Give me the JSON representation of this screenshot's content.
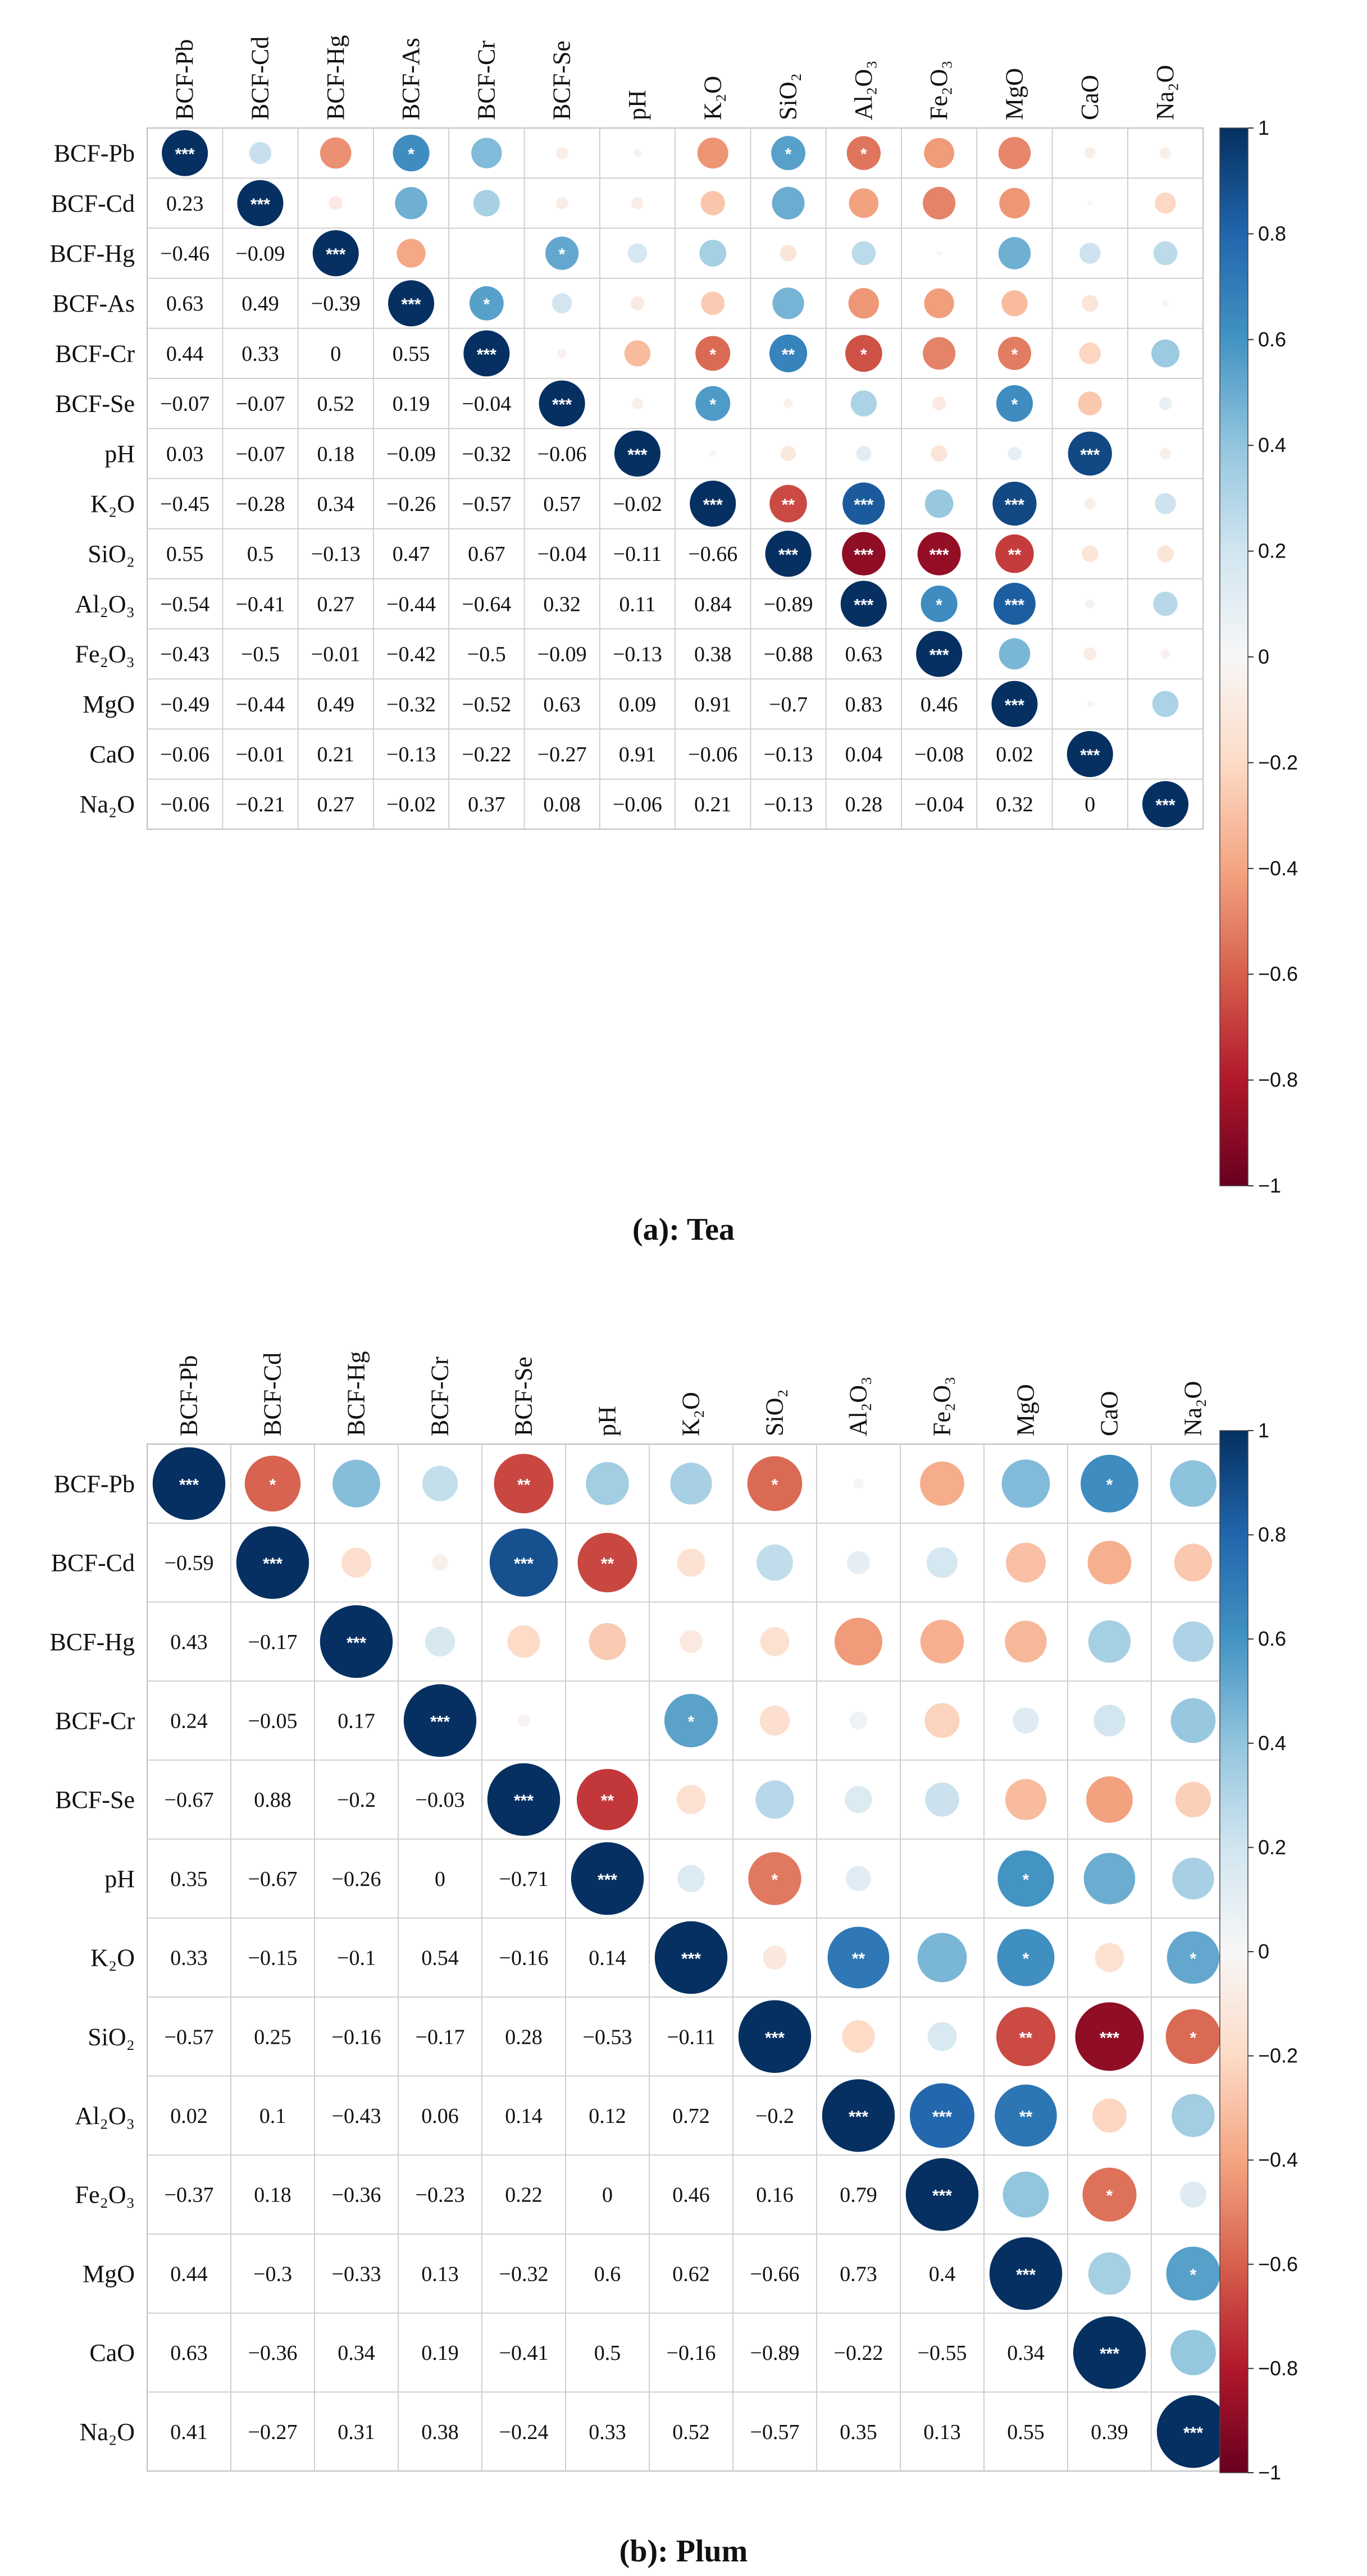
{
  "chart_data": [
    {
      "type": "heatmap",
      "subtype": "correlation-matrix (circles in upper triangle, values in lower triangle)",
      "title": "(a): Tea",
      "variables": [
        "BCF-Pb",
        "BCF-Cd",
        "BCF-Hg",
        "BCF-As",
        "BCF-Cr",
        "BCF-Se",
        "pH",
        "K₂O",
        "SiO₂",
        "Al₂O₃",
        "Fe₂O₃",
        "MgO",
        "CaO",
        "Na₂O"
      ],
      "lower_values": [
        [],
        [
          0.23
        ],
        [
          -0.46,
          -0.09
        ],
        [
          0.63,
          0.49,
          -0.39
        ],
        [
          0.44,
          0.33,
          0,
          0.55
        ],
        [
          -0.07,
          -0.07,
          0.52,
          0.19,
          -0.04
        ],
        [
          0.03,
          -0.07,
          0.18,
          -0.09,
          -0.32,
          -0.06
        ],
        [
          -0.45,
          -0.28,
          0.34,
          -0.26,
          -0.57,
          0.57,
          -0.02
        ],
        [
          0.55,
          0.5,
          -0.13,
          0.47,
          0.67,
          -0.04,
          -0.11,
          -0.66
        ],
        [
          -0.54,
          -0.41,
          0.27,
          -0.44,
          -0.64,
          0.32,
          0.11,
          0.84,
          -0.89
        ],
        [
          -0.43,
          -0.5,
          -0.01,
          -0.42,
          -0.5,
          -0.09,
          -0.13,
          0.38,
          -0.88,
          0.63
        ],
        [
          -0.49,
          -0.44,
          0.49,
          -0.32,
          -0.52,
          0.63,
          0.09,
          0.91,
          -0.7,
          0.83,
          0.46
        ],
        [
          -0.06,
          -0.01,
          0.21,
          -0.13,
          -0.22,
          -0.27,
          0.91,
          -0.06,
          -0.13,
          0.04,
          -0.08,
          0.02
        ],
        [
          -0.06,
          -0.21,
          0.27,
          -0.02,
          0.37,
          0.08,
          -0.06,
          0.21,
          -0.13,
          0.28,
          -0.04,
          0.32,
          0
        ]
      ],
      "significance": [
        {
          "row": 0,
          "col": 3,
          "mark": "*"
        },
        {
          "row": 0,
          "col": 8,
          "mark": "*"
        },
        {
          "row": 0,
          "col": 9,
          "mark": "*"
        },
        {
          "row": 2,
          "col": 5,
          "mark": "*"
        },
        {
          "row": 3,
          "col": 4,
          "mark": "*"
        },
        {
          "row": 4,
          "col": 7,
          "mark": "*"
        },
        {
          "row": 4,
          "col": 8,
          "mark": "**"
        },
        {
          "row": 4,
          "col": 9,
          "mark": "*"
        },
        {
          "row": 4,
          "col": 11,
          "mark": "*"
        },
        {
          "row": 5,
          "col": 7,
          "mark": "*"
        },
        {
          "row": 5,
          "col": 11,
          "mark": "*"
        },
        {
          "row": 6,
          "col": 12,
          "mark": "***"
        },
        {
          "row": 7,
          "col": 8,
          "mark": "**"
        },
        {
          "row": 7,
          "col": 9,
          "mark": "***"
        },
        {
          "row": 7,
          "col": 11,
          "mark": "***"
        },
        {
          "row": 8,
          "col": 9,
          "mark": "***"
        },
        {
          "row": 8,
          "col": 10,
          "mark": "***"
        },
        {
          "row": 8,
          "col": 11,
          "mark": "**"
        },
        {
          "row": 9,
          "col": 10,
          "mark": "*"
        },
        {
          "row": 9,
          "col": 11,
          "mark": "***"
        }
      ],
      "diagonal_mark": "***",
      "colorbar": {
        "range": [
          -1,
          1
        ],
        "ticks": [
          1,
          0.8,
          0.6,
          0.4,
          0.2,
          0,
          -0.2,
          -0.4,
          -0.6,
          -0.8,
          -1
        ],
        "tick_labels": [
          "1",
          "0.8",
          "0.6",
          "0.4",
          "0.2",
          "0",
          "−0.2",
          "−0.4",
          "−0.6",
          "−0.8",
          "−1"
        ],
        "negative_color": "#67001f",
        "neutral_color": "#ffffff",
        "positive_color": "#053061"
      }
    },
    {
      "type": "heatmap",
      "subtype": "correlation-matrix (circles in upper triangle, values in lower triangle)",
      "title": "(b): Plum",
      "variables": [
        "BCF-Pb",
        "BCF-Cd",
        "BCF-Hg",
        "BCF-Cr",
        "BCF-Se",
        "pH",
        "K₂O",
        "SiO₂",
        "Al₂O₃",
        "Fe₂O₃",
        "MgO",
        "CaO",
        "Na₂O"
      ],
      "lower_values": [
        [],
        [
          -0.59
        ],
        [
          0.43,
          -0.17
        ],
        [
          0.24,
          -0.05,
          0.17
        ],
        [
          -0.67,
          0.88,
          -0.2,
          -0.03
        ],
        [
          0.35,
          -0.67,
          -0.26,
          0,
          -0.71
        ],
        [
          0.33,
          -0.15,
          -0.1,
          0.54,
          -0.16,
          0.14
        ],
        [
          -0.57,
          0.25,
          -0.16,
          -0.17,
          0.28,
          -0.53,
          -0.11
        ],
        [
          0.02,
          0.1,
          -0.43,
          0.06,
          0.14,
          0.12,
          0.72,
          -0.2
        ],
        [
          -0.37,
          0.18,
          -0.36,
          -0.23,
          0.22,
          0,
          0.46,
          0.16,
          0.79
        ],
        [
          0.44,
          -0.3,
          -0.33,
          0.13,
          -0.32,
          0.6,
          0.62,
          -0.66,
          0.73,
          0.4
        ],
        [
          0.63,
          -0.36,
          0.34,
          0.19,
          -0.41,
          0.5,
          -0.16,
          -0.89,
          -0.22,
          -0.55,
          0.34
        ],
        [
          0.41,
          -0.27,
          0.31,
          0.38,
          -0.24,
          0.33,
          0.52,
          -0.57,
          0.35,
          0.13,
          0.55,
          0.39
        ]
      ],
      "significance": [
        {
          "row": 0,
          "col": 1,
          "mark": "*"
        },
        {
          "row": 0,
          "col": 4,
          "mark": "**"
        },
        {
          "row": 0,
          "col": 7,
          "mark": "*"
        },
        {
          "row": 0,
          "col": 11,
          "mark": "*"
        },
        {
          "row": 1,
          "col": 4,
          "mark": "***"
        },
        {
          "row": 1,
          "col": 5,
          "mark": "**"
        },
        {
          "row": 3,
          "col": 6,
          "mark": "*"
        },
        {
          "row": 4,
          "col": 5,
          "mark": "**"
        },
        {
          "row": 5,
          "col": 7,
          "mark": "*"
        },
        {
          "row": 5,
          "col": 10,
          "mark": "*"
        },
        {
          "row": 6,
          "col": 8,
          "mark": "**"
        },
        {
          "row": 6,
          "col": 10,
          "mark": "*"
        },
        {
          "row": 6,
          "col": 12,
          "mark": "*"
        },
        {
          "row": 7,
          "col": 10,
          "mark": "**"
        },
        {
          "row": 7,
          "col": 11,
          "mark": "***"
        },
        {
          "row": 7,
          "col": 12,
          "mark": "*"
        },
        {
          "row": 8,
          "col": 9,
          "mark": "***"
        },
        {
          "row": 8,
          "col": 10,
          "mark": "**"
        },
        {
          "row": 9,
          "col": 11,
          "mark": "*"
        },
        {
          "row": 10,
          "col": 12,
          "mark": "*"
        }
      ],
      "diagonal_mark": "***",
      "colorbar": {
        "range": [
          -1,
          1
        ],
        "ticks": [
          1,
          0.8,
          0.6,
          0.4,
          0.2,
          0,
          -0.2,
          -0.4,
          -0.6,
          -0.8,
          -1
        ],
        "tick_labels": [
          "1",
          "0.8",
          "0.6",
          "0.4",
          "0.2",
          "0",
          "−0.2",
          "−0.4",
          "−0.6",
          "−0.8",
          "−1"
        ],
        "negative_color": "#67001f",
        "neutral_color": "#ffffff",
        "positive_color": "#053061"
      }
    }
  ]
}
